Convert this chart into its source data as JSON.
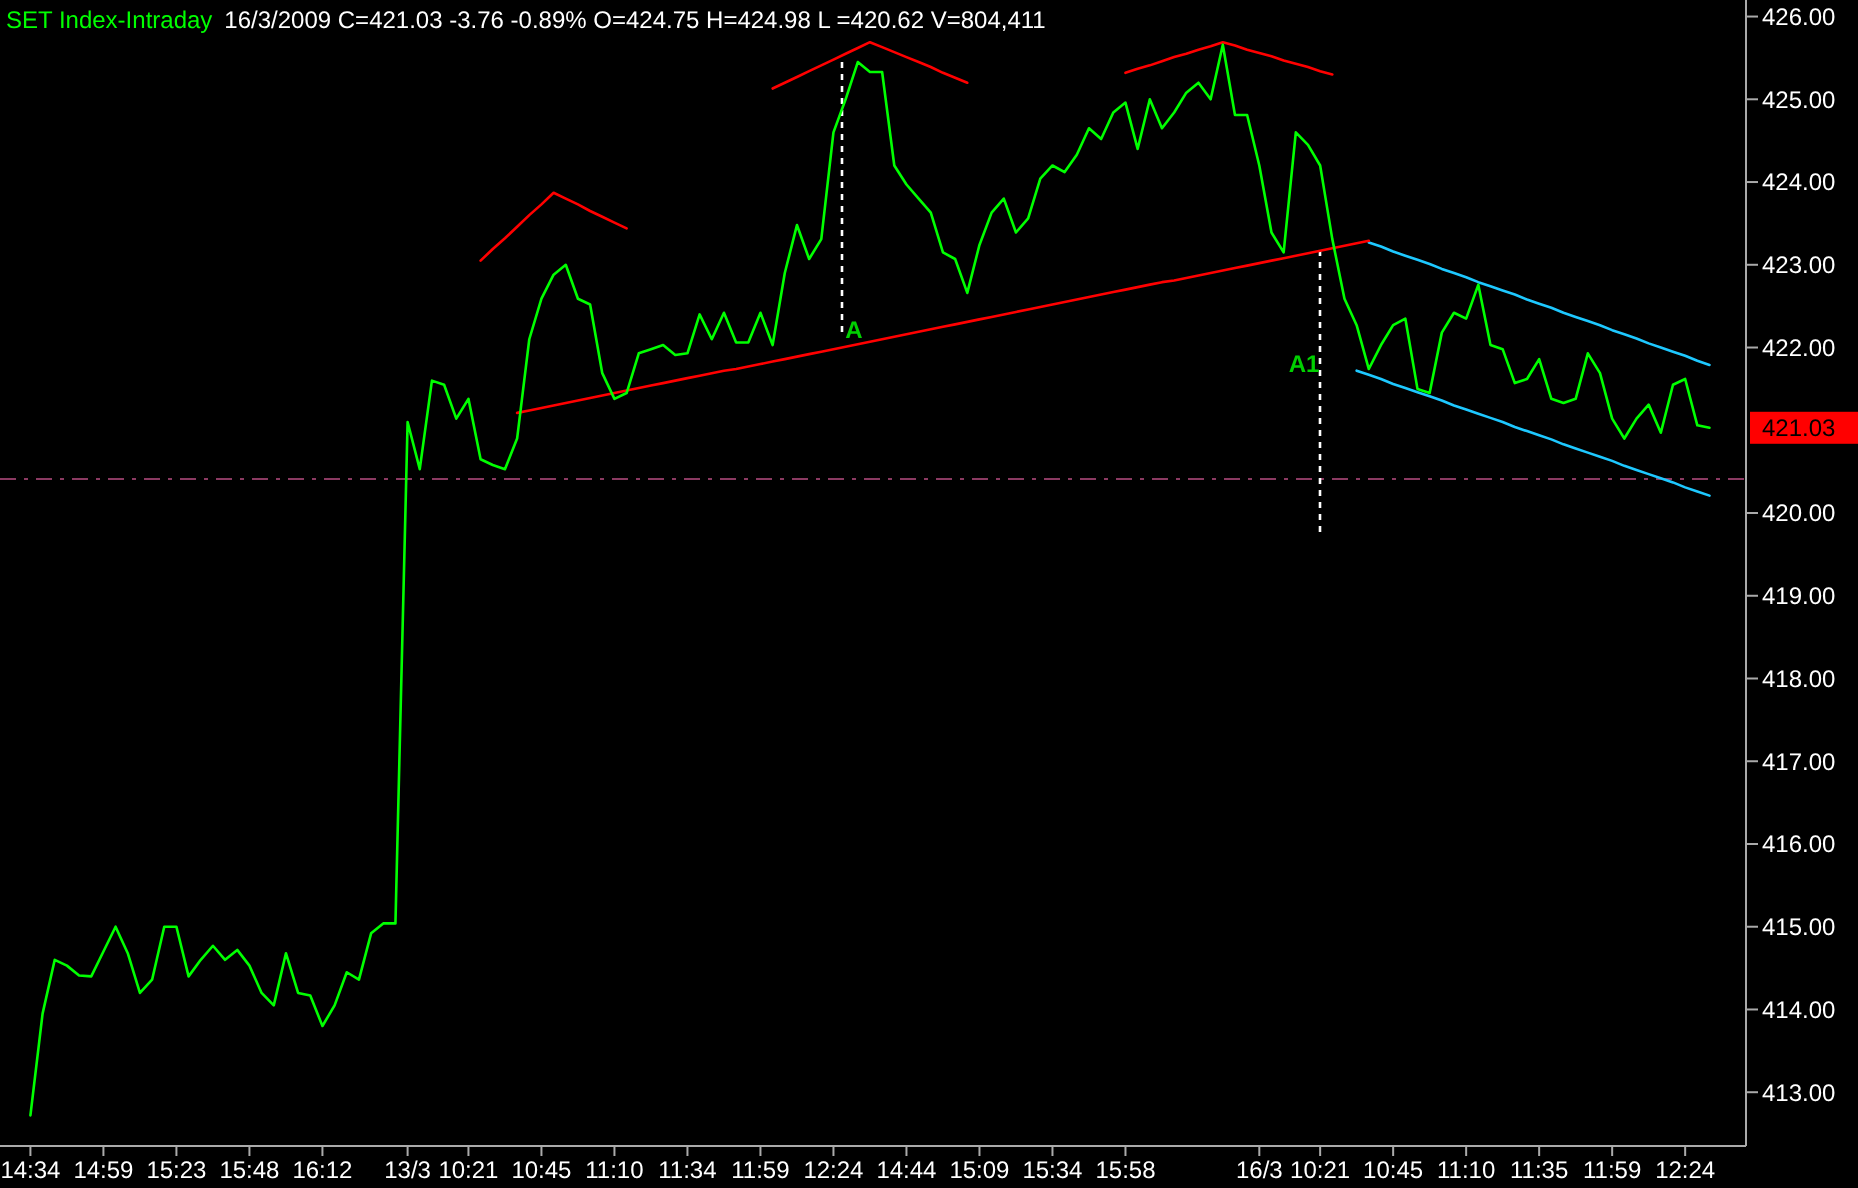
{
  "chart_data": {
    "type": "line",
    "title": "SET Index-Intraday",
    "subtitle": "16/3/2009 C=421.03 -3.76 -0.89% O=424.75 H=424.98 L =420.62 V=804,411",
    "categories": [
      "14:34",
      null,
      null,
      null,
      null,
      null,
      "14:59",
      null,
      null,
      null,
      null,
      null,
      "15:23",
      null,
      null,
      null,
      null,
      null,
      "15:48",
      null,
      null,
      null,
      null,
      null,
      "16:12",
      null,
      null,
      null,
      null,
      null,
      null,
      "13/3",
      null,
      null,
      null,
      null,
      "10:21",
      null,
      null,
      null,
      null,
      null,
      "10:45",
      null,
      null,
      null,
      null,
      null,
      "11:10",
      null,
      null,
      null,
      null,
      null,
      "11:34",
      null,
      null,
      null,
      null,
      null,
      "11:59",
      null,
      null,
      null,
      null,
      null,
      "12:24",
      null,
      null,
      null,
      null,
      null,
      "14:44",
      null,
      null,
      null,
      null,
      null,
      "15:09",
      null,
      null,
      null,
      null,
      null,
      "15:34",
      null,
      null,
      null,
      null,
      null,
      "15:58",
      null,
      null,
      null,
      null,
      null,
      null,
      null,
      null,
      null,
      null,
      "16/3",
      null,
      null,
      null,
      null,
      "10:21",
      null,
      null,
      null,
      null,
      null,
      "10:45",
      null,
      null,
      null,
      null,
      null,
      "11:10",
      null,
      null,
      null,
      null,
      null,
      "11:35",
      null,
      null,
      null,
      null,
      null,
      "11:59",
      null,
      null,
      null,
      null,
      null,
      "12:24",
      null,
      null
    ],
    "ylim": [
      412.35,
      426.2
    ],
    "yticks": [
      {
        "value": 413,
        "label": "413.00"
      },
      {
        "value": 414,
        "label": "414.00"
      },
      {
        "value": 415,
        "label": "415.00"
      },
      {
        "value": 416,
        "label": "416.00"
      },
      {
        "value": 417,
        "label": "417.00"
      },
      {
        "value": 418,
        "label": "418.00"
      },
      {
        "value": 419,
        "label": "419.00"
      },
      {
        "value": 420,
        "label": "420.00"
      },
      {
        "value": 422,
        "label": "422.00"
      },
      {
        "value": 423,
        "label": "423.00"
      },
      {
        "value": 424,
        "label": "424.00"
      },
      {
        "value": 425,
        "label": "425.00"
      },
      {
        "value": 426,
        "label": "426.00"
      }
    ],
    "series": [
      {
        "color": "#00ff00",
        "line_style": "solid",
        "values": [
          412.72,
          413.95,
          414.6,
          414.53,
          414.41,
          414.4,
          414.7,
          415.0,
          414.68,
          414.2,
          414.36,
          415.0,
          415.0,
          414.4,
          414.6,
          414.77,
          414.6,
          414.72,
          414.53,
          414.2,
          414.05,
          414.68,
          414.2,
          414.17,
          413.8,
          414.05,
          414.45,
          414.36,
          414.92,
          415.04,
          415.04,
          421.1,
          420.53,
          421.6,
          421.55,
          421.14,
          421.38,
          420.65,
          420.58,
          420.53,
          420.9,
          422.1,
          422.59,
          422.88,
          423.0,
          422.59,
          422.52,
          421.69,
          421.38,
          421.45,
          421.93,
          421.98,
          422.03,
          421.91,
          421.93,
          422.4,
          422.1,
          422.42,
          422.06,
          422.06,
          422.42,
          422.03,
          422.9,
          423.48,
          423.07,
          423.31,
          424.6,
          425.0,
          425.45,
          425.33,
          425.33,
          424.2,
          423.97,
          423.8,
          423.63,
          423.15,
          423.07,
          422.66,
          423.24,
          423.63,
          423.8,
          423.39,
          423.56,
          424.04,
          424.2,
          424.12,
          424.33,
          424.65,
          424.52,
          424.84,
          424.96,
          424.4,
          425.0,
          424.65,
          424.84,
          425.08,
          425.2,
          425.0,
          425.66,
          424.81,
          424.81,
          424.2,
          423.39,
          423.15,
          424.6,
          424.45,
          424.2,
          423.31,
          422.59,
          422.27,
          421.74,
          422.03,
          422.27,
          422.35,
          421.5,
          421.45,
          422.18,
          422.42,
          422.35,
          422.76,
          422.03,
          421.98,
          421.57,
          421.62,
          421.86,
          421.38,
          421.33,
          421.38,
          421.93,
          421.69,
          421.14,
          420.9,
          421.14,
          421.31,
          420.97,
          421.55,
          421.62,
          421.06,
          421.03
        ]
      },
      {
        "type": "line",
        "color": "#ff0000",
        "line_style": "solid",
        "values": [
          null,
          null,
          null,
          null,
          null,
          null,
          null,
          null,
          null,
          null,
          null,
          null,
          null,
          null,
          null,
          null,
          null,
          null,
          null,
          null,
          null,
          null,
          null,
          null,
          null,
          null,
          null,
          null,
          null,
          null,
          null,
          null,
          null,
          null,
          null,
          null,
          null,
          423.05,
          423.19,
          423.32,
          423.46,
          423.6,
          423.73,
          423.87,
          423.8,
          423.73,
          423.65,
          423.58,
          423.51,
          423.44,
          null,
          null,
          null,
          null,
          null,
          null,
          null,
          null,
          null,
          null,
          null,
          null,
          null,
          null,
          null,
          null,
          null,
          null,
          null,
          null,
          null,
          null,
          null,
          null,
          null,
          null,
          null,
          null,
          null,
          null,
          null,
          null,
          null,
          null,
          null,
          null,
          null,
          null,
          null,
          null,
          null,
          null,
          null,
          null,
          null,
          null,
          null,
          null,
          null,
          null,
          null,
          null,
          null,
          null,
          null,
          null,
          null,
          null,
          null,
          null,
          null,
          null,
          null,
          null,
          null,
          null,
          null,
          null,
          null,
          null,
          null,
          null,
          null,
          null,
          null,
          null,
          null,
          null,
          null,
          null,
          null,
          null,
          null,
          null,
          null,
          null,
          null,
          null,
          null
        ]
      },
      {
        "type": "line",
        "color": "#ff0000",
        "line_style": "solid",
        "values": [
          null,
          null,
          null,
          null,
          null,
          null,
          null,
          null,
          null,
          null,
          null,
          null,
          null,
          null,
          null,
          null,
          null,
          null,
          null,
          null,
          null,
          null,
          null,
          null,
          null,
          null,
          null,
          null,
          null,
          null,
          null,
          null,
          null,
          null,
          null,
          null,
          null,
          null,
          null,
          null,
          null,
          null,
          null,
          null,
          null,
          null,
          null,
          null,
          null,
          null,
          null,
          null,
          null,
          null,
          null,
          null,
          null,
          null,
          null,
          null,
          null,
          425.13,
          425.2,
          425.27,
          425.34,
          425.41,
          425.48,
          425.55,
          425.62,
          425.69,
          425.63,
          425.57,
          425.51,
          425.45,
          425.39,
          425.32,
          425.26,
          425.2,
          null,
          null,
          null,
          null,
          null,
          null,
          null,
          null,
          null,
          null,
          null,
          null,
          null,
          null,
          null,
          null,
          null,
          null,
          null,
          null,
          null,
          null,
          null,
          null,
          null,
          null,
          null,
          null,
          null,
          null,
          null,
          null,
          null,
          null,
          null,
          null,
          null,
          null,
          null,
          null,
          null,
          null,
          null,
          null,
          null,
          null,
          null,
          null,
          null,
          null,
          null,
          null,
          null,
          null,
          null,
          null,
          null,
          null,
          null,
          null,
          null
        ]
      },
      {
        "type": "line",
        "color": "#ff0000",
        "line_style": "solid",
        "values": [
          null,
          null,
          null,
          null,
          null,
          null,
          null,
          null,
          null,
          null,
          null,
          null,
          null,
          null,
          null,
          null,
          null,
          null,
          null,
          null,
          null,
          null,
          null,
          null,
          null,
          null,
          null,
          null,
          null,
          null,
          null,
          null,
          null,
          null,
          null,
          null,
          null,
          null,
          null,
          null,
          null,
          null,
          null,
          null,
          null,
          null,
          null,
          null,
          null,
          null,
          null,
          null,
          null,
          null,
          null,
          null,
          null,
          null,
          null,
          null,
          null,
          null,
          null,
          null,
          null,
          null,
          null,
          null,
          null,
          null,
          null,
          null,
          null,
          null,
          null,
          null,
          null,
          null,
          null,
          null,
          null,
          null,
          null,
          null,
          null,
          null,
          null,
          null,
          null,
          null,
          425.32,
          425.37,
          425.41,
          425.46,
          425.51,
          425.55,
          425.6,
          425.64,
          425.69,
          425.65,
          425.6,
          425.56,
          425.52,
          425.47,
          425.43,
          425.39,
          425.34,
          425.3,
          null,
          null,
          null,
          null,
          null,
          null,
          null,
          null,
          null,
          null,
          null,
          null,
          null,
          null,
          null,
          null,
          null,
          null,
          null,
          null,
          null,
          null,
          null,
          null,
          null,
          null,
          null,
          null,
          null,
          null,
          null
        ]
      },
      {
        "type": "line",
        "color": "#ff0000",
        "line_style": "solid",
        "values": [
          null,
          null,
          null,
          null,
          null,
          null,
          null,
          null,
          null,
          null,
          null,
          null,
          null,
          null,
          null,
          null,
          null,
          null,
          null,
          null,
          null,
          null,
          null,
          null,
          null,
          null,
          null,
          null,
          null,
          null,
          null,
          null,
          null,
          null,
          null,
          null,
          null,
          null,
          null,
          null,
          421.21,
          421.24,
          421.27,
          421.3,
          421.33,
          421.36,
          421.39,
          421.42,
          421.45,
          421.48,
          421.51,
          421.54,
          421.57,
          421.6,
          421.63,
          421.66,
          421.69,
          421.72,
          421.74,
          421.77,
          421.8,
          421.83,
          421.86,
          421.89,
          421.92,
          421.95,
          421.98,
          422.01,
          422.04,
          422.07,
          422.1,
          422.13,
          422.16,
          422.19,
          422.22,
          422.25,
          422.28,
          422.31,
          422.34,
          422.37,
          422.4,
          422.43,
          422.46,
          422.49,
          422.52,
          422.55,
          422.58,
          422.61,
          422.64,
          422.67,
          422.7,
          422.73,
          422.76,
          422.79,
          422.81,
          422.84,
          422.87,
          422.9,
          422.93,
          422.96,
          422.99,
          423.02,
          423.05,
          423.08,
          423.11,
          423.14,
          423.17,
          423.2,
          423.23,
          423.26,
          423.29,
          null,
          null,
          null,
          null,
          null,
          null,
          null,
          null,
          null,
          null,
          null,
          null,
          null,
          null,
          null,
          null,
          null,
          null,
          null,
          null,
          null,
          null,
          null,
          null,
          null,
          null,
          null,
          null
        ]
      },
      {
        "type": "line",
        "color": "#1ec8ff",
        "line_style": "solid",
        "values": [
          null,
          null,
          null,
          null,
          null,
          null,
          null,
          null,
          null,
          null,
          null,
          null,
          null,
          null,
          null,
          null,
          null,
          null,
          null,
          null,
          null,
          null,
          null,
          null,
          null,
          null,
          null,
          null,
          null,
          null,
          null,
          null,
          null,
          null,
          null,
          null,
          null,
          null,
          null,
          null,
          null,
          null,
          null,
          null,
          null,
          null,
          null,
          null,
          null,
          null,
          null,
          null,
          null,
          null,
          null,
          null,
          null,
          null,
          null,
          null,
          null,
          null,
          null,
          null,
          null,
          null,
          null,
          null,
          null,
          null,
          null,
          null,
          null,
          null,
          null,
          null,
          null,
          null,
          null,
          null,
          null,
          null,
          null,
          null,
          null,
          null,
          null,
          null,
          null,
          null,
          null,
          null,
          null,
          null,
          null,
          null,
          null,
          null,
          null,
          null,
          null,
          null,
          null,
          null,
          null,
          null,
          null,
          null,
          null,
          null,
          423.27,
          423.22,
          423.16,
          423.11,
          423.06,
          423.01,
          422.95,
          422.9,
          422.85,
          422.79,
          422.74,
          422.69,
          422.64,
          422.58,
          422.53,
          422.48,
          422.42,
          422.37,
          422.32,
          422.27,
          422.21,
          422.16,
          422.11,
          422.05,
          422.0,
          421.95,
          421.9,
          421.84,
          421.79
        ]
      },
      {
        "type": "line",
        "color": "#1ec8ff",
        "line_style": "solid",
        "values": [
          null,
          null,
          null,
          null,
          null,
          null,
          null,
          null,
          null,
          null,
          null,
          null,
          null,
          null,
          null,
          null,
          null,
          null,
          null,
          null,
          null,
          null,
          null,
          null,
          null,
          null,
          null,
          null,
          null,
          null,
          null,
          null,
          null,
          null,
          null,
          null,
          null,
          null,
          null,
          null,
          null,
          null,
          null,
          null,
          null,
          null,
          null,
          null,
          null,
          null,
          null,
          null,
          null,
          null,
          null,
          null,
          null,
          null,
          null,
          null,
          null,
          null,
          null,
          null,
          null,
          null,
          null,
          null,
          null,
          null,
          null,
          null,
          null,
          null,
          null,
          null,
          null,
          null,
          null,
          null,
          null,
          null,
          null,
          null,
          null,
          null,
          null,
          null,
          null,
          null,
          null,
          null,
          null,
          null,
          null,
          null,
          null,
          null,
          null,
          null,
          null,
          null,
          null,
          null,
          null,
          null,
          null,
          null,
          null,
          421.72,
          421.67,
          421.62,
          421.56,
          421.51,
          421.46,
          421.41,
          421.36,
          421.3,
          421.25,
          421.2,
          421.15,
          421.1,
          421.04,
          420.99,
          420.94,
          420.89,
          420.83,
          420.78,
          420.73,
          420.68,
          420.63,
          420.57,
          420.52,
          420.47,
          420.42,
          420.37,
          420.31,
          420.26,
          420.21
        ]
      }
    ],
    "ref_lines": [
      {
        "axis": "y",
        "value": 420.41,
        "color": "#8b3a62",
        "line_style": "dashed"
      }
    ],
    "annotations": [
      {
        "text": "A",
        "y": 425.45
      },
      "A1",
      "421.03"
    ]
  }
}
